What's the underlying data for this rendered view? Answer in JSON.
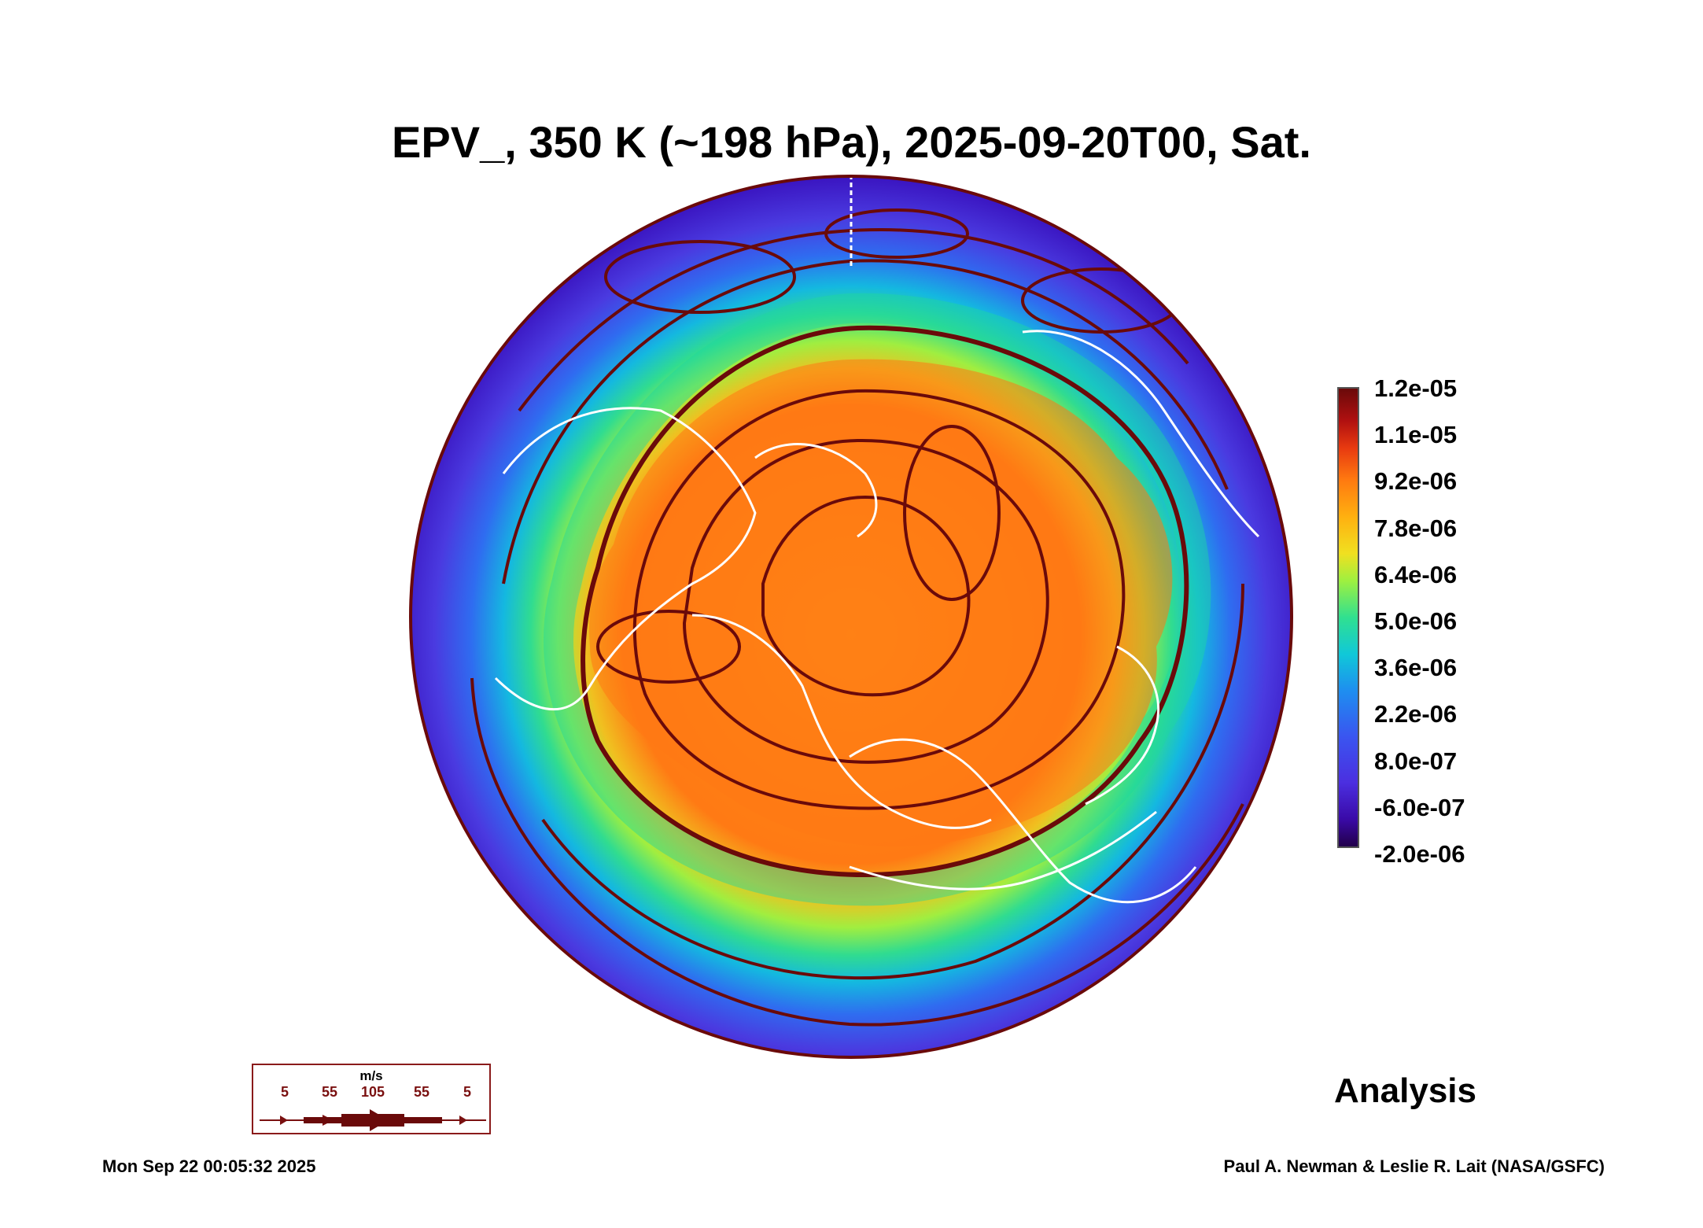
{
  "title": "EPV_, 350 K (~198 hPa), 2025-09-20T00, Sat.",
  "colorbar": {
    "labels": [
      "1.2e-05",
      "1.1e-05",
      "9.2e-06",
      "7.8e-06",
      "6.4e-06",
      "5.0e-06",
      "3.6e-06",
      "2.2e-06",
      "8.0e-07",
      "-6.0e-07",
      "-2.0e-06"
    ]
  },
  "wind_legend": {
    "unit": "m/s",
    "ticks": [
      "5",
      "55",
      "105",
      "55",
      "5"
    ]
  },
  "analysis_label": "Analysis",
  "timestamp": "Mon Sep 22 00:05:32 2025",
  "credit": "Paul A. Newman & Leslie R. Lait (NASA/GSFC)",
  "colors": {
    "stream": "#6a0a0a",
    "coast": "#ffffff",
    "core": "#ff8a10",
    "outer": "#3b2fd8"
  }
}
